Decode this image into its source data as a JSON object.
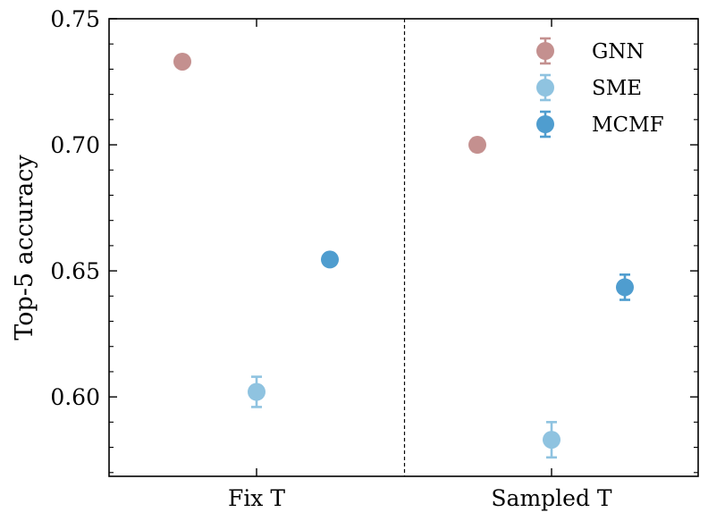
{
  "chart_data": {
    "type": "scatter",
    "title": "",
    "xlabel": "",
    "ylabel": "Top-5 accuracy",
    "ylim": [
      0.5685,
      0.75
    ],
    "yticks": [
      0.6,
      0.65,
      0.7,
      0.75
    ],
    "ytick_labels": [
      "0.60",
      "0.65",
      "0.70",
      "0.75"
    ],
    "categories": [
      "Fix T",
      "Sampled T"
    ],
    "divider": "dashed vertical line between groups",
    "legend_position": "top-right",
    "series": [
      {
        "name": "GNN",
        "color": "#c4908f",
        "values": [
          0.733,
          0.7
        ],
        "errors": [
          0.0,
          0.0025
        ]
      },
      {
        "name": "SME",
        "color": "#8fc3e0",
        "values": [
          0.602,
          0.583
        ],
        "errors": [
          0.006,
          0.007
        ]
      },
      {
        "name": "MCMF",
        "color": "#4f9dcf",
        "values": [
          0.6545,
          0.6435
        ],
        "errors": [
          0.0,
          0.005
        ]
      }
    ]
  }
}
